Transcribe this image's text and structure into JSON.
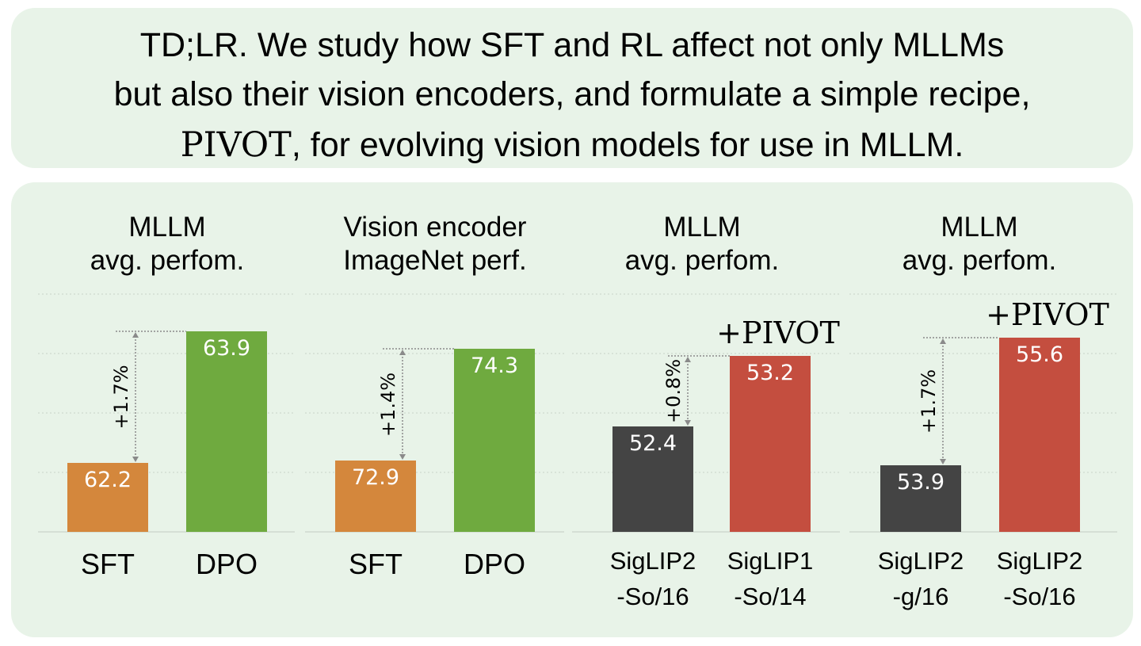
{
  "tldr": {
    "line1": "TD;LR. We study how SFT and RL affect not only MLLMs",
    "line2": "but also their vision encoders, and formulate a simple recipe,",
    "line3_method": "PIVOT",
    "line3_rest": ", for evolving vision models for use in MLLM."
  },
  "colors": {
    "sft": "#d4873c",
    "dpo": "#6faa3f",
    "baseline": "#444444",
    "pivot": "#c44e3f",
    "grid": "#c9d3c9",
    "arrow": "#8a8a8a"
  },
  "chart_data": [
    {
      "type": "bar",
      "title": [
        "MLLM",
        "avg. perfom."
      ],
      "categories": [
        [
          "SFT"
        ],
        [
          "DPO"
        ]
      ],
      "values": [
        62.2,
        63.9
      ],
      "bar_colors": [
        "sft",
        "dpo"
      ],
      "annotation": "+1.7%",
      "tag": ""
    },
    {
      "type": "bar",
      "title": [
        "Vision encoder",
        "ImageNet perf."
      ],
      "categories": [
        [
          "SFT"
        ],
        [
          "DPO"
        ]
      ],
      "values": [
        72.9,
        74.3
      ],
      "bar_colors": [
        "sft",
        "dpo"
      ],
      "annotation": "+1.4%",
      "tag": ""
    },
    {
      "type": "bar",
      "title": [
        "MLLM",
        "avg. perfom."
      ],
      "categories": [
        [
          "SigLIP2",
          "-So/16"
        ],
        [
          "SigLIP1",
          "-So/14"
        ]
      ],
      "values": [
        52.4,
        53.2
      ],
      "bar_colors": [
        "baseline",
        "pivot"
      ],
      "annotation": "+0.8%",
      "tag": "+PIVOT"
    },
    {
      "type": "bar",
      "title": [
        "MLLM",
        "avg. perfom."
      ],
      "categories": [
        [
          "SigLIP2",
          "-g/16"
        ],
        [
          "SigLIP2",
          "-So/16"
        ]
      ],
      "values": [
        53.9,
        55.6
      ],
      "bar_colors": [
        "baseline",
        "pivot"
      ],
      "annotation": "+1.7%",
      "tag": "+PIVOT"
    }
  ]
}
